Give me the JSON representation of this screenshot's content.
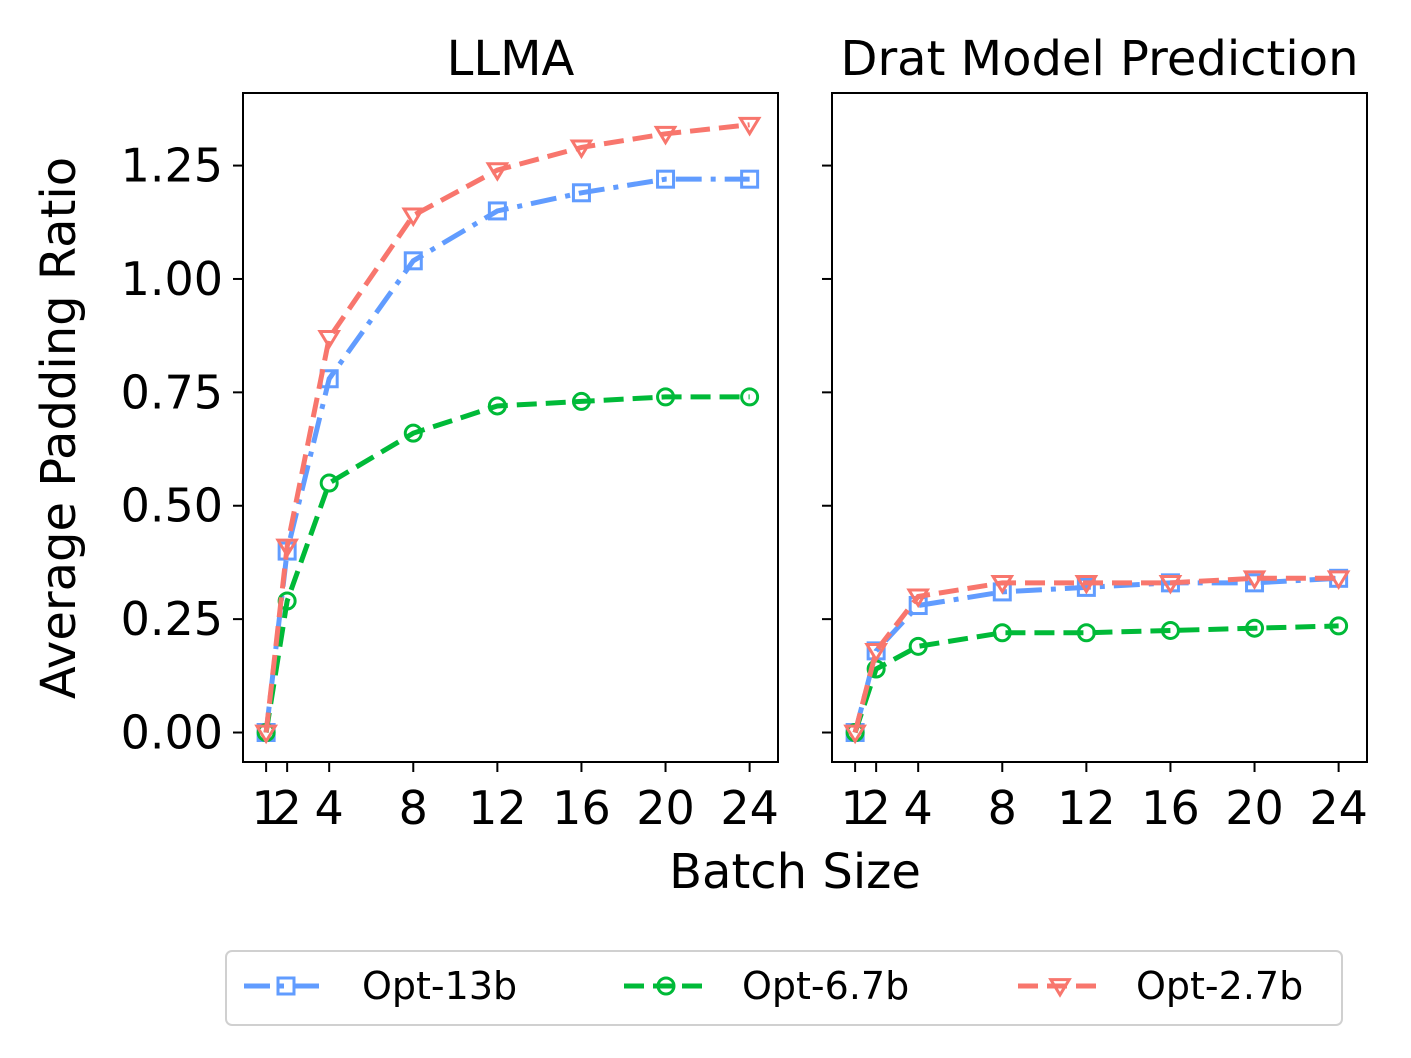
{
  "chart_data": {
    "type": "line",
    "x": [
      1,
      2,
      4,
      8,
      12,
      16,
      20,
      24
    ],
    "xticks": [
      "1",
      "2",
      "4",
      "8",
      "12",
      "16",
      "20",
      "24"
    ],
    "xlabel": "Batch Size",
    "ylabel": "Average Padding Ratio",
    "yticks": [
      "0.00",
      "0.25",
      "0.50",
      "0.75",
      "1.00",
      "1.25"
    ],
    "ylim": [
      -0.065,
      1.41
    ],
    "panels": [
      {
        "title": "LLMA",
        "series": [
          {
            "name": "Opt-13b",
            "values": [
              0.0,
              0.4,
              0.78,
              1.04,
              1.15,
              1.19,
              1.22,
              1.22
            ]
          },
          {
            "name": "Opt-6.7b",
            "values": [
              0.0,
              0.29,
              0.55,
              0.66,
              0.72,
              0.73,
              0.74,
              0.74
            ]
          },
          {
            "name": "Opt-2.7b",
            "values": [
              0.0,
              0.41,
              0.87,
              1.14,
              1.24,
              1.29,
              1.32,
              1.34
            ]
          }
        ]
      },
      {
        "title": "Drat Model Prediction",
        "series": [
          {
            "name": "Opt-13b",
            "values": [
              0.0,
              0.18,
              0.28,
              0.31,
              0.32,
              0.33,
              0.33,
              0.34
            ]
          },
          {
            "name": "Opt-6.7b",
            "values": [
              0.0,
              0.14,
              0.19,
              0.22,
              0.22,
              0.225,
              0.23,
              0.235
            ]
          },
          {
            "name": "Opt-2.7b",
            "values": [
              0.0,
              0.18,
              0.3,
              0.33,
              0.33,
              0.33,
              0.34,
              0.34
            ]
          }
        ]
      }
    ],
    "legend": {
      "placement": "bottom",
      "entries": [
        {
          "name": "Opt-13b",
          "color": "#619CFF",
          "marker": "square",
          "dash": "dashdot"
        },
        {
          "name": "Opt-6.7b",
          "color": "#00BA38",
          "marker": "circle",
          "dash": "dashed"
        },
        {
          "name": "Opt-2.7b",
          "color": "#F8766D",
          "marker": "triangle-down",
          "dash": "dashed"
        }
      ]
    }
  }
}
